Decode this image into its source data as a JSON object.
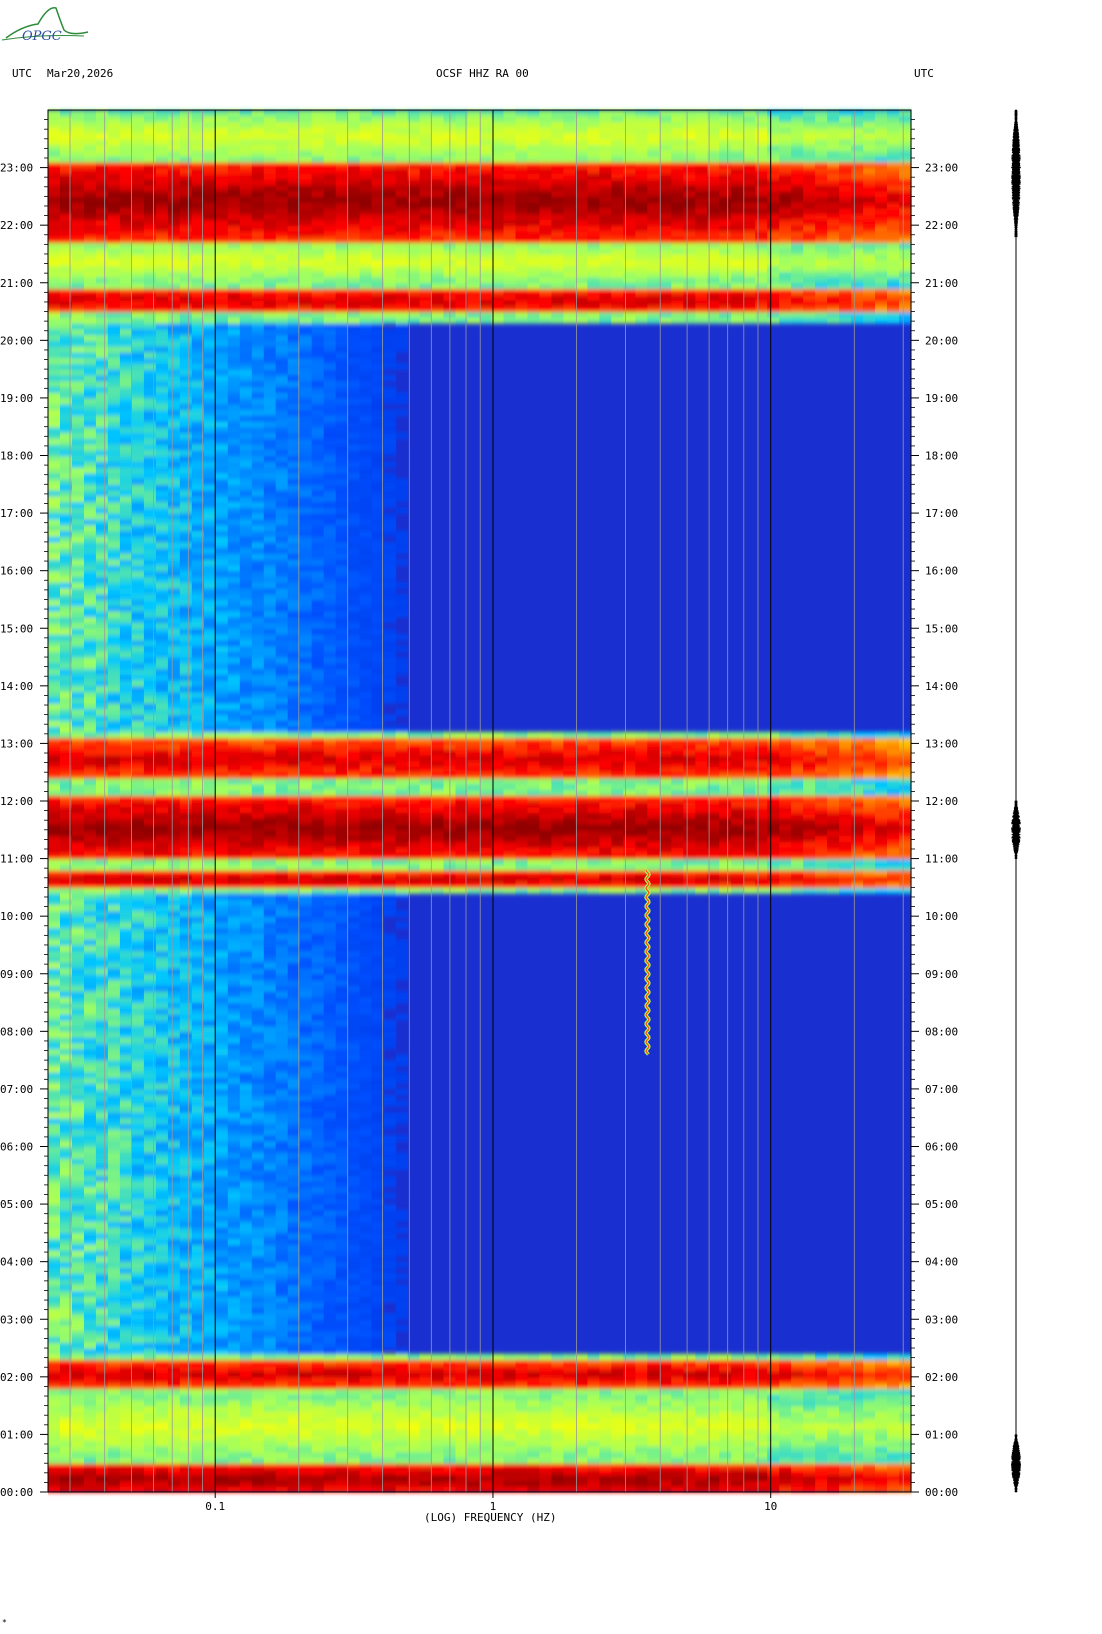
{
  "header": {
    "left_timezone": "UTC",
    "date": "Mar20,2026",
    "station_title": "OCSF HHZ RA 00",
    "right_timezone": "UTC"
  },
  "logo": {
    "text": "OPGC",
    "colors": {
      "text": "#2b4fa0",
      "swoosh": "#2e8b3a"
    }
  },
  "footer_mark": "*",
  "chart_data": {
    "type": "heatmap",
    "title": "OCSF HHZ RA 00",
    "xlabel": "(LOG) FREQUENCY (HZ)",
    "ylabel": "UTC",
    "x_scale": "log",
    "x_range_hz": [
      0.025,
      32
    ],
    "y_range_hours": [
      0,
      24
    ],
    "x_ticks": [
      {
        "value": 0.1,
        "label": "0.1"
      },
      {
        "value": 1,
        "label": "1"
      },
      {
        "value": 10,
        "label": "10"
      }
    ],
    "y_ticks": [
      "00:00",
      "01:00",
      "02:00",
      "03:00",
      "04:00",
      "05:00",
      "06:00",
      "07:00",
      "08:00",
      "09:00",
      "10:00",
      "11:00",
      "12:00",
      "13:00",
      "14:00",
      "15:00",
      "16:00",
      "17:00",
      "18:00",
      "19:00",
      "20:00",
      "21:00",
      "22:00",
      "23:00"
    ],
    "colormap": [
      "#0018c8",
      "#0050ff",
      "#00c8ff",
      "#a0ff60",
      "#ffff00",
      "#ff9000",
      "#ff0000",
      "#900000"
    ],
    "background_color": "#1a2fd0",
    "high_energy_bands_utc_hours": [
      {
        "start": 0.0,
        "end": 0.45,
        "intensity": 0.95
      },
      {
        "start": 1.85,
        "end": 2.25,
        "intensity": 0.8
      },
      {
        "start": 10.55,
        "end": 10.75,
        "intensity": 0.8
      },
      {
        "start": 11.0,
        "end": 12.05,
        "intensity": 1.0
      },
      {
        "start": 12.4,
        "end": 13.05,
        "intensity": 0.8
      },
      {
        "start": 20.5,
        "end": 20.9,
        "intensity": 0.8
      },
      {
        "start": 21.75,
        "end": 23.1,
        "intensity": 1.0
      }
    ],
    "moderate_energy_bands_utc_hours": [
      {
        "start": 0.45,
        "end": 1.85
      },
      {
        "start": 21.0,
        "end": 21.75
      },
      {
        "start": 23.1,
        "end": 24.0
      }
    ],
    "narrow_event": {
      "frequency_hz": 3.6,
      "start_hour": 7.6,
      "end_hour": 10.8
    },
    "seismogram_trace": {
      "bursts_utc_hours": [
        {
          "start": 0.0,
          "end": 1.0
        },
        {
          "start": 11.0,
          "end": 12.0
        },
        {
          "start": 21.8,
          "end": 24.0
        }
      ]
    }
  }
}
